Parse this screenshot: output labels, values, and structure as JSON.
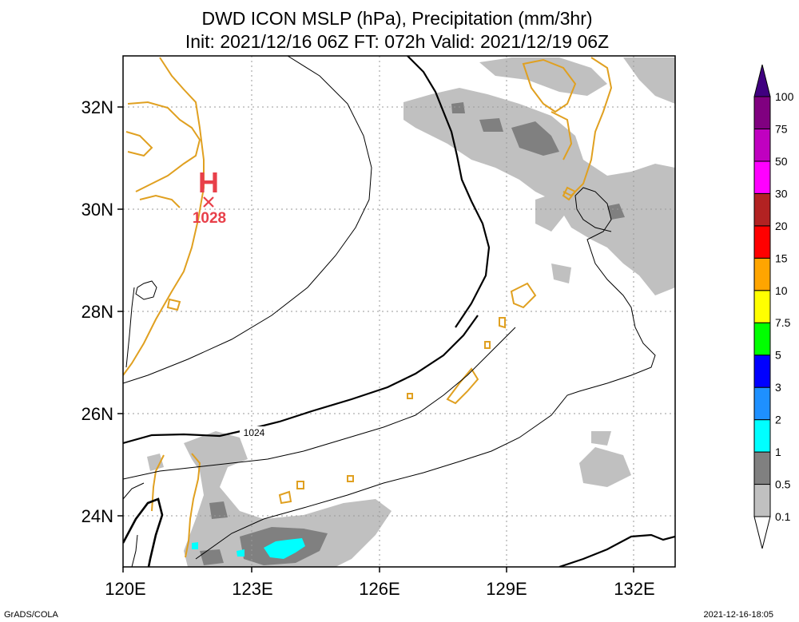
{
  "title": {
    "line1": "DWD ICON MSLP (hPa), Precipitation (mm/3hr)",
    "line2": "Init: 2021/12/16 06Z  FT: 072h  Valid: 2021/12/19 06Z"
  },
  "axes": {
    "lon_range": [
      120,
      133
    ],
    "lat_range": [
      23,
      33
    ],
    "x_ticks": [
      {
        "value": 120,
        "label": "120E"
      },
      {
        "value": 123,
        "label": "123E"
      },
      {
        "value": 126,
        "label": "126E"
      },
      {
        "value": 129,
        "label": "129E"
      },
      {
        "value": 132,
        "label": "132E"
      }
    ],
    "y_ticks": [
      {
        "value": 24,
        "label": "24N"
      },
      {
        "value": 26,
        "label": "26N"
      },
      {
        "value": 28,
        "label": "28N"
      },
      {
        "value": 30,
        "label": "30N"
      },
      {
        "value": 32,
        "label": "32N"
      }
    ],
    "grid": "dotted"
  },
  "high_center": {
    "symbol": "H",
    "value_label": "1028",
    "lon": 122.0,
    "lat": 30.15,
    "color": "#e8404a"
  },
  "contour_labels": [
    {
      "label": "1024",
      "lon": 123.1,
      "lat": 25.7
    }
  ],
  "colorbar": {
    "levels": [
      "0.1",
      "0.5",
      "1",
      "2",
      "3",
      "5",
      "7.5",
      "10",
      "15",
      "20",
      "30",
      "50",
      "75",
      "100"
    ],
    "colors": [
      "#ffffff",
      "#c0c0c0",
      "#808080",
      "#00ffff",
      "#1e90ff",
      "#0000ff",
      "#00ff00",
      "#ffff00",
      "#ffa500",
      "#ff0000",
      "#b22222",
      "#ff00ff",
      "#c000c0",
      "#800080",
      "#400080"
    ]
  },
  "colors": {
    "coastline": "#e0a020",
    "isobar": "#000000"
  },
  "footer": {
    "left": "GrADS/COLA",
    "right": "2021-12-16-18:05"
  }
}
